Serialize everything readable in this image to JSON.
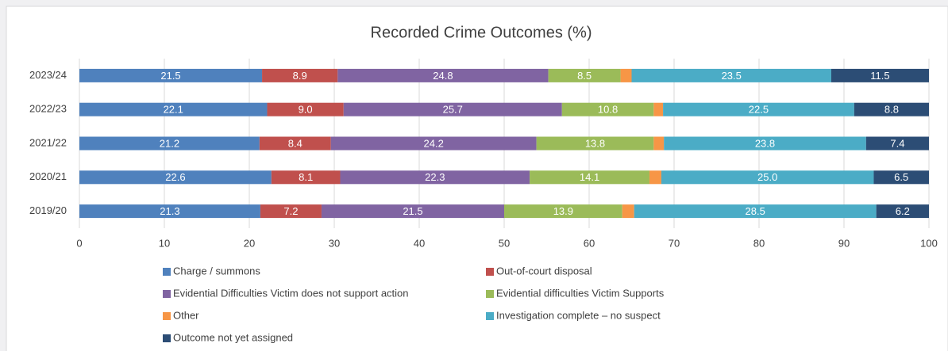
{
  "chart_data": {
    "type": "stacked-bar-horizontal",
    "title": "Recorded Crime Outcomes (%)",
    "categories": [
      "2023/24",
      "2022/23",
      "2021/22",
      "2020/21",
      "2019/20"
    ],
    "series": [
      {
        "name": "Charge / summons",
        "color": "#4f81bd",
        "values": [
          21.5,
          22.1,
          21.2,
          22.6,
          21.3
        ]
      },
      {
        "name": "Out-of-court disposal",
        "color": "#c0504d",
        "values": [
          8.9,
          9.0,
          8.4,
          8.1,
          7.2
        ],
        "value_labels": [
          "8.9",
          "9.0",
          "8.4",
          "8.1",
          "7.2"
        ]
      },
      {
        "name": "Evidential Difficulties Victim does not support action",
        "color": "#8064a2",
        "values": [
          24.8,
          25.7,
          24.2,
          22.3,
          21.5
        ]
      },
      {
        "name": "Evidential difficulties Victim Supports",
        "color": "#9bbb59",
        "values": [
          8.5,
          10.8,
          13.8,
          14.1,
          13.9
        ]
      },
      {
        "name": "Other",
        "color": "#f79646",
        "values": [
          1.3,
          1.1,
          1.2,
          1.4,
          1.4
        ]
      },
      {
        "name": "Investigation complete – no suspect",
        "color": "#4bacc6",
        "values": [
          23.5,
          22.5,
          23.8,
          25.0,
          28.5
        ],
        "value_labels": [
          "23.5",
          "22.5",
          "23.8",
          "25.0",
          "28.5"
        ]
      },
      {
        "name": "Outcome not yet assigned",
        "color": "#2c4d75",
        "values": [
          11.5,
          8.8,
          7.4,
          6.5,
          6.2
        ]
      }
    ],
    "xlim": [
      0,
      100
    ],
    "xticks": [
      0,
      10,
      20,
      30,
      40,
      50,
      60,
      70,
      80,
      90,
      100
    ],
    "grid": true
  }
}
